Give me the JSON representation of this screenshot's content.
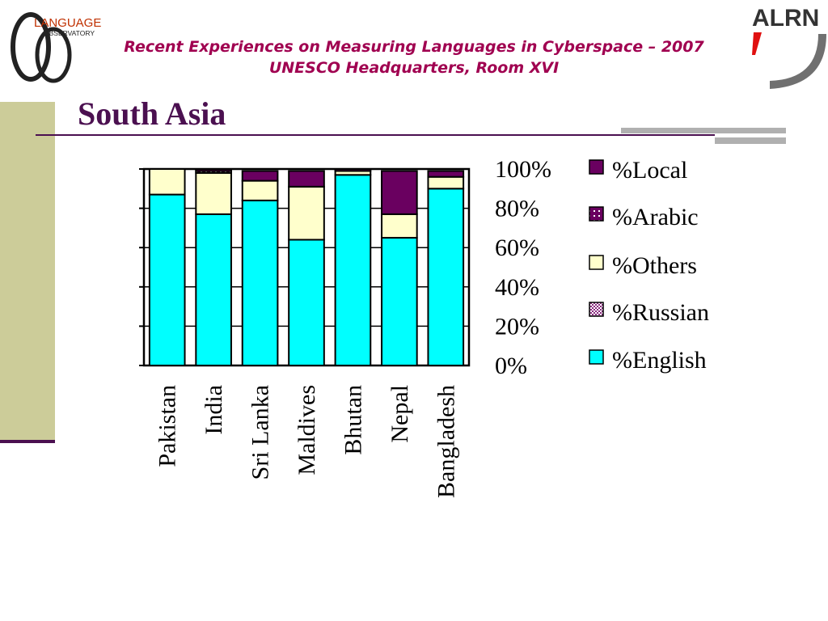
{
  "header": {
    "line1": "Recent Experiences on Measuring Languages in Cyberspace – 2007",
    "line2": "UNESCO Headquarters, Room XVI"
  },
  "logos": {
    "left_line1": "LANGUAGE",
    "left_line2": "OBSERVATORY",
    "right_text": "ALRN"
  },
  "slide": {
    "title": "South Asia"
  },
  "colors": {
    "title": "#4b1050",
    "header": "#a00050",
    "sidebar": "#cccc99",
    "english": "#00ffff",
    "others": "#ffffcc",
    "local": "#6a0060",
    "arabic": "#6a0060",
    "russian": "#cc99cc"
  },
  "chart_data": {
    "type": "bar",
    "stacked": true,
    "categories": [
      "Pakistan",
      "India",
      "Sri Lanka",
      "Maldives",
      "Bhutan",
      "Nepal",
      "Bangladesh"
    ],
    "yticks": [
      "0%",
      "20%",
      "40%",
      "60%",
      "80%",
      "100%"
    ],
    "ylim": [
      0,
      100
    ],
    "series": [
      {
        "name": "%English",
        "key": "english",
        "values": [
          87,
          77,
          84,
          64,
          97,
          65,
          90
        ]
      },
      {
        "name": "%Russian",
        "key": "russian",
        "values": [
          0,
          0,
          0,
          0,
          0,
          0,
          0
        ]
      },
      {
        "name": "%Others",
        "key": "others",
        "values": [
          13,
          21,
          10,
          27,
          2,
          12,
          6
        ]
      },
      {
        "name": "%Arabic",
        "key": "arabic",
        "values": [
          0,
          1,
          0,
          0,
          0,
          0,
          0
        ]
      },
      {
        "name": "%Local",
        "key": "local",
        "values": [
          0,
          1,
          5,
          8,
          1,
          22,
          3
        ]
      }
    ],
    "legend_order": [
      "%Local",
      "%Arabic",
      "%Others",
      "%Russian",
      "%English"
    ],
    "legend_position": "right",
    "grid": true
  }
}
